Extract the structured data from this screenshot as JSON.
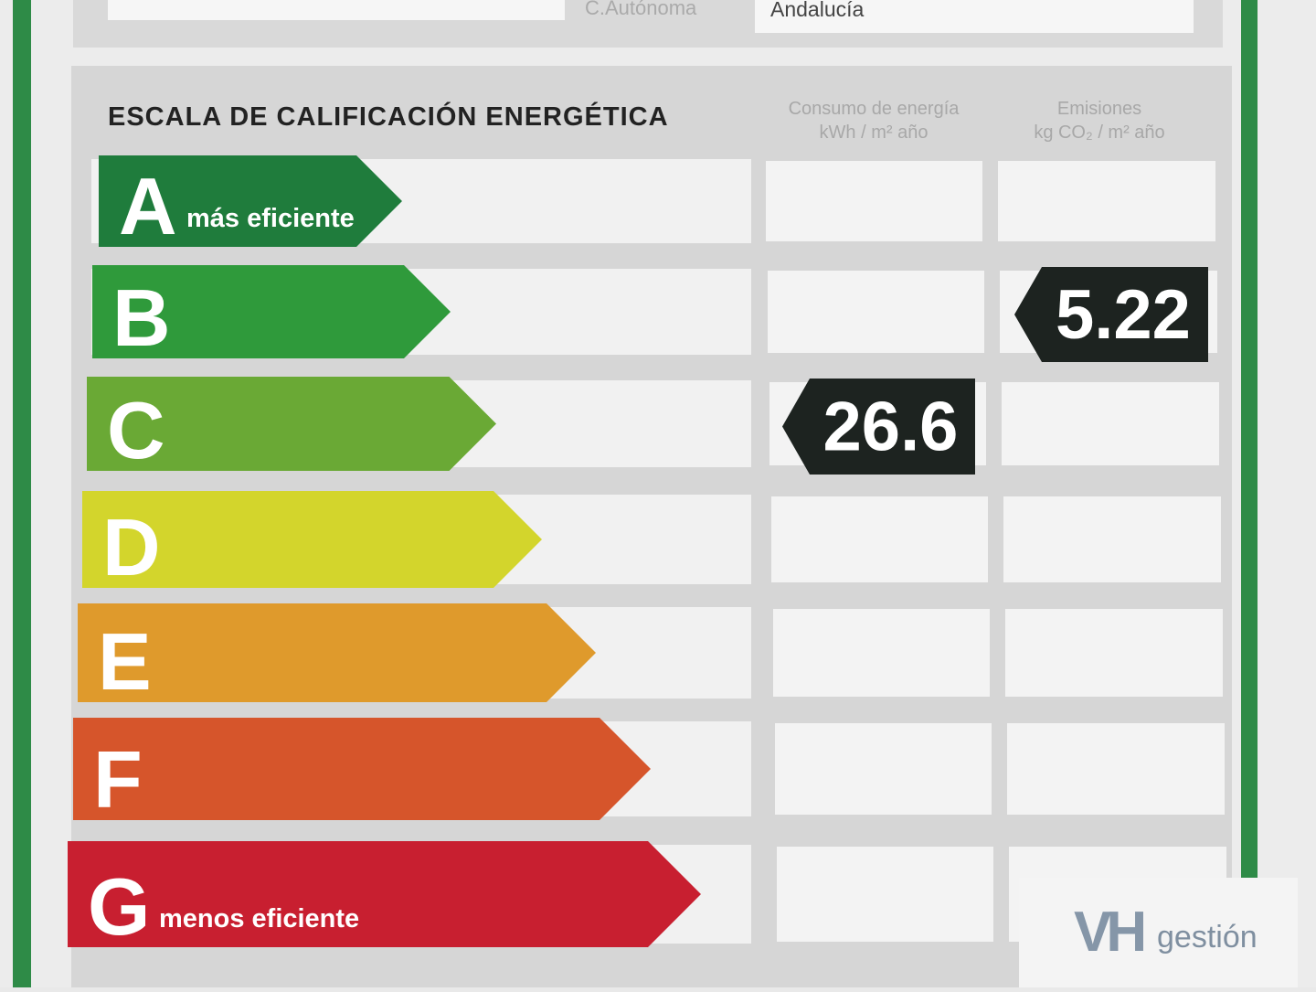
{
  "header": {
    "region_label": "C.Autónoma",
    "region": "Andalucía"
  },
  "scale": {
    "title": "ESCALA DE CALIFICACIÓN ENERGÉTICA",
    "columns": [
      {
        "title": "Consumo de energía",
        "unit": "kWh / m² año"
      },
      {
        "title": "Emisiones",
        "unit": "kg CO₂ / m² año"
      }
    ],
    "rows": [
      {
        "letter": "A",
        "note": "más eficiente"
      },
      {
        "letter": "B",
        "emisiones": 5.22
      },
      {
        "letter": "C",
        "consumo": 26.6
      },
      {
        "letter": "D"
      },
      {
        "letter": "E"
      },
      {
        "letter": "F"
      },
      {
        "letter": "G",
        "note": "menos eficiente"
      }
    ]
  },
  "logo": {
    "mark": "VH",
    "text": "gestión"
  }
}
